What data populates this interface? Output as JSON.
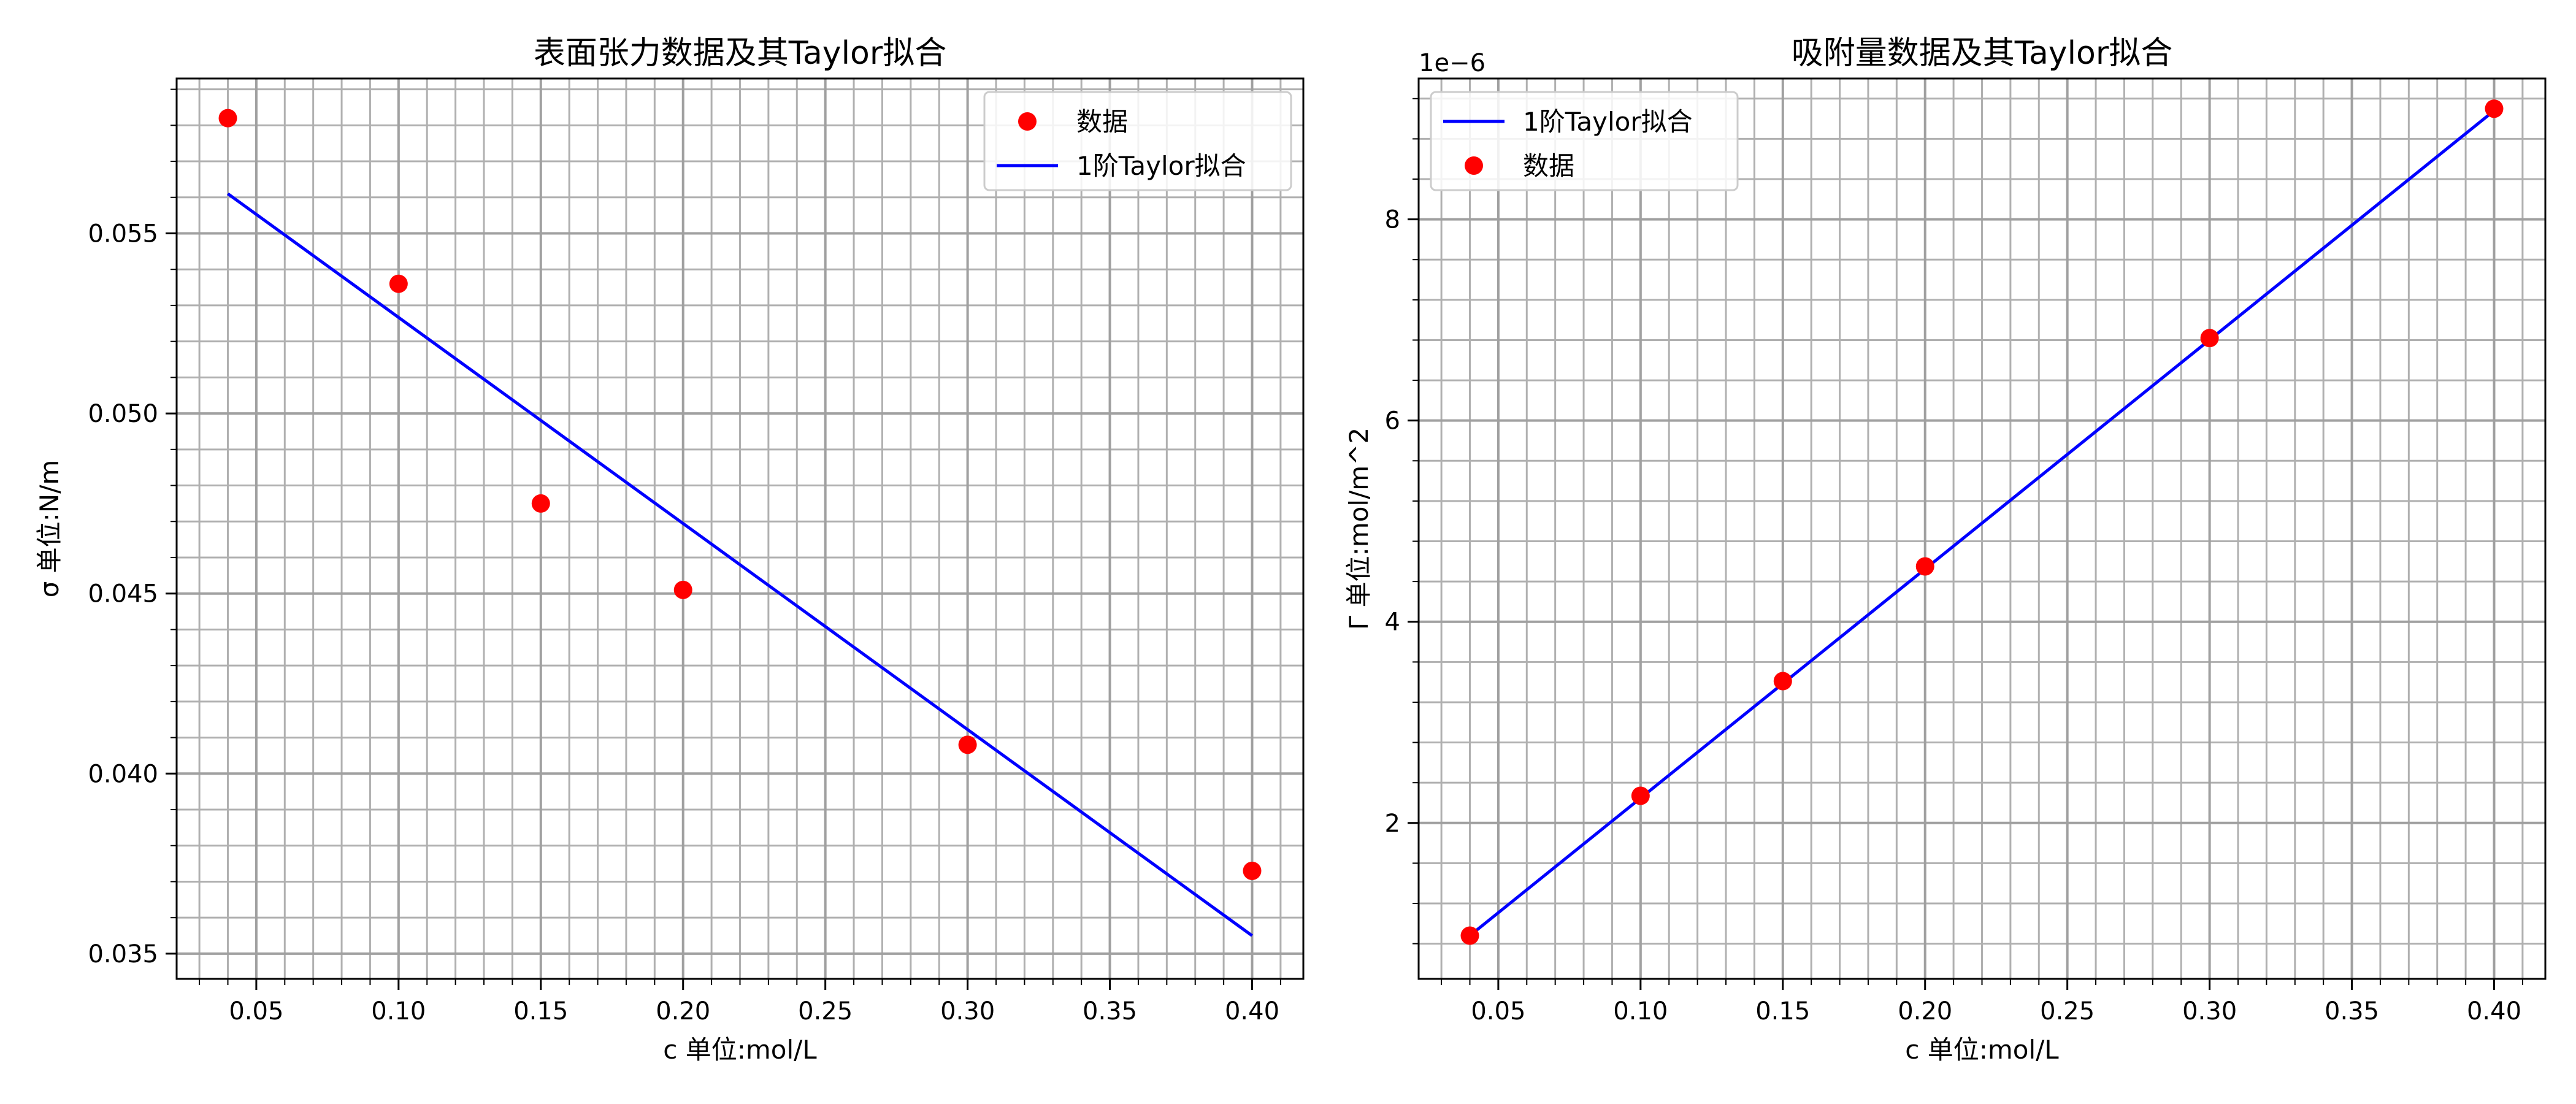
{
  "chart_data": [
    {
      "type": "scatter",
      "title": "表面张力数据及其Taylor拟合",
      "xlabel": "c      单位:mol/L",
      "ylabel": "σ   单位:N/m",
      "xlim": [
        0.022,
        0.418
      ],
      "ylim": [
        0.0343,
        0.0593
      ],
      "xticks": [
        0.05,
        0.1,
        0.15,
        0.2,
        0.25,
        0.3,
        0.35,
        0.4
      ],
      "xtick_labels": [
        "0.05",
        "0.10",
        "0.15",
        "0.20",
        "0.25",
        "0.30",
        "0.35",
        "0.40"
      ],
      "yticks": [
        0.035,
        0.04,
        0.045,
        0.05,
        0.055
      ],
      "ytick_labels": [
        "0.035",
        "0.040",
        "0.045",
        "0.050",
        "0.055"
      ],
      "grid": "major-and-minor",
      "legend_position": "upper right",
      "series": [
        {
          "name": "数据",
          "kind": "scatter",
          "color": "#ff0000",
          "x": [
            0.04,
            0.1,
            0.15,
            0.2,
            0.3,
            0.4
          ],
          "y": [
            0.0582,
            0.0536,
            0.0475,
            0.0451,
            0.0408,
            0.0373
          ]
        },
        {
          "name": "1阶Taylor拟合",
          "kind": "line",
          "color": "#0000ff",
          "x": [
            0.04,
            0.4
          ],
          "y": [
            0.0561,
            0.0355
          ]
        }
      ],
      "legend_order": [
        0,
        1
      ]
    },
    {
      "type": "scatter",
      "title": "吸附量数据及其Taylor拟合",
      "xlabel": "c      单位:mol/L",
      "ylabel": "Γ   单位:mol/m^2",
      "offset_text": "1e−6",
      "xlim": [
        0.022,
        0.418
      ],
      "ylim": [
        0.45,
        9.4
      ],
      "xticks": [
        0.05,
        0.1,
        0.15,
        0.2,
        0.25,
        0.3,
        0.35,
        0.4
      ],
      "xtick_labels": [
        "0.05",
        "0.10",
        "0.15",
        "0.20",
        "0.25",
        "0.30",
        "0.35",
        "0.40"
      ],
      "yticks": [
        2,
        4,
        6,
        8
      ],
      "ytick_labels": [
        "2",
        "4",
        "6",
        "8"
      ],
      "grid": "major-and-minor",
      "legend_position": "upper left",
      "series": [
        {
          "name": "1阶Taylor拟合",
          "kind": "line",
          "color": "#0000ff",
          "x": [
            0.04,
            0.4
          ],
          "y": [
            0.88,
            9.08
          ]
        },
        {
          "name": "数据",
          "kind": "scatter",
          "color": "#ff0000",
          "x": [
            0.04,
            0.1,
            0.15,
            0.2,
            0.3,
            0.4
          ],
          "y": [
            0.88,
            2.27,
            3.41,
            4.55,
            6.82,
            9.1
          ]
        }
      ],
      "legend_order": [
        0,
        1
      ]
    }
  ]
}
